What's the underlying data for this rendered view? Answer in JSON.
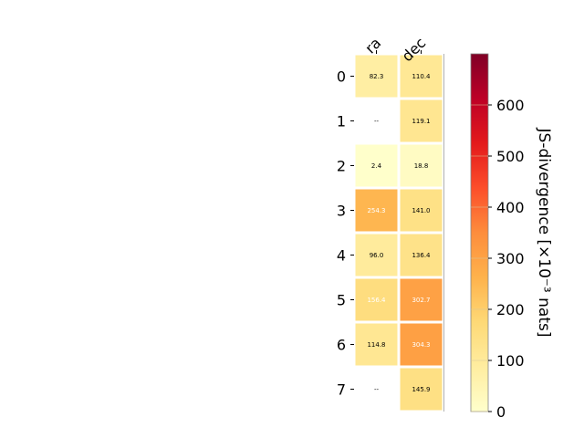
{
  "chart_data": {
    "type": "heatmap",
    "columns": [
      "ra",
      "dec"
    ],
    "rows": [
      "0",
      "1",
      "2",
      "3",
      "4",
      "5",
      "6",
      "7"
    ],
    "values": [
      [
        82.3,
        110.4
      ],
      [
        null,
        119.1
      ],
      [
        2.4,
        18.8
      ],
      [
        254.3,
        141.0
      ],
      [
        96.0,
        136.4
      ],
      [
        156.4,
        302.7
      ],
      [
        114.8,
        304.3
      ],
      [
        null,
        145.9
      ]
    ],
    "cell_labels": [
      [
        "82.3",
        "110.4"
      ],
      [
        "--",
        "119.1"
      ],
      [
        "2.4",
        "18.8"
      ],
      [
        "254.3",
        "141.0"
      ],
      [
        "96.0",
        "136.4"
      ],
      [
        "156.4",
        "302.7"
      ],
      [
        "114.8",
        "304.3"
      ],
      [
        "--",
        "145.9"
      ]
    ],
    "colorbar": {
      "label": "JS-divergence [×10⁻³ nats]",
      "range": [
        0,
        700
      ],
      "ticks": [
        "0",
        "100",
        "200",
        "300",
        "400",
        "500",
        "600"
      ],
      "colormap": "YlOrRd"
    }
  }
}
